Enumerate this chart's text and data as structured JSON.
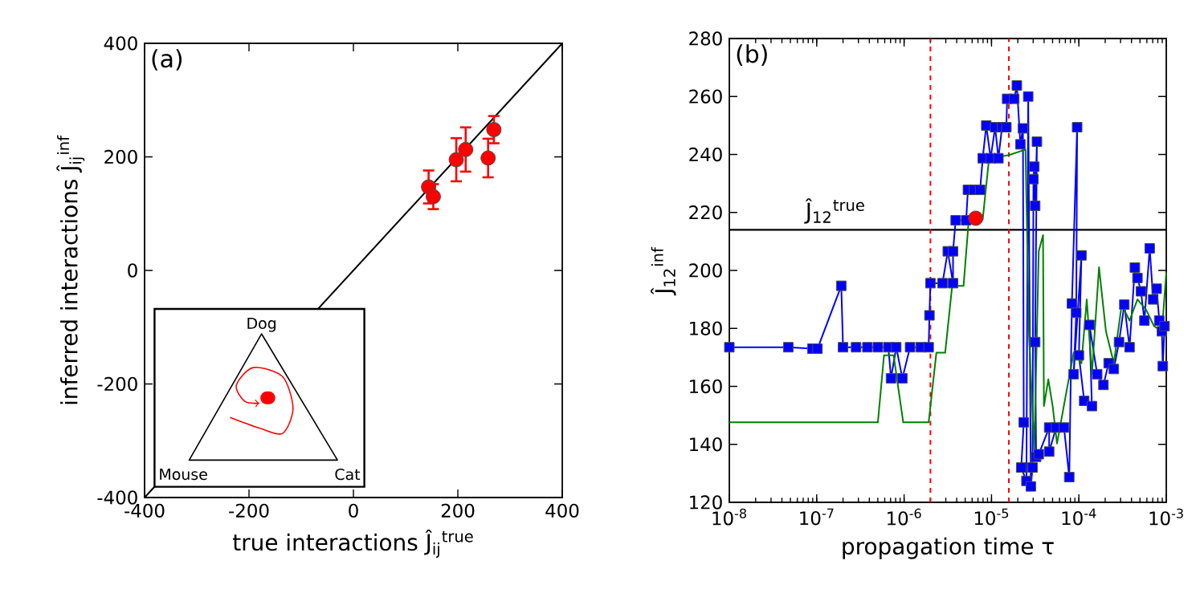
{
  "chart_data": [
    {
      "type": "scatter",
      "xlabel": "true interactions Ĵ$_{ij}$$^{true}$",
      "ylabel": "inferred interactions Ĵ$_{ij}$$^{inf}$",
      "annotations": [
        "(a)",
        "Dog",
        "Mouse",
        "Cat"
      ],
      "xlim": [
        -400,
        400
      ],
      "ylim": [
        -400,
        400
      ],
      "xticks": [
        -400,
        -200,
        0,
        200,
        400
      ],
      "yticks": [
        -400,
        -200,
        0,
        200,
        400
      ],
      "series": [
        {
          "type": "line",
          "color": "#000000",
          "marker": "none",
          "x": [
            -400,
            400
          ],
          "values": [
            -400,
            400
          ]
        },
        {
          "color": "#ff0000",
          "marker": "circle",
          "x": [
            144,
            153,
            197,
            215,
            258,
            269
          ],
          "values": [
            147,
            130,
            195,
            213,
            198,
            248
          ],
          "errors": [
            29,
            22,
            38,
            39,
            34,
            24
          ]
        }
      ]
    },
    {
      "type": "line",
      "xlabel": "propagation time τ",
      "ylabel": "Ĵ$_{12}$$^{inf}$",
      "annotations": [
        "(b)"
      ],
      "log": "x",
      "xlim": [
        1e-08,
        0.001
      ],
      "ylim": [
        120,
        280
      ],
      "xticks": [
        {
          "value": 1e-08,
          "label": "10$^{-8}$"
        },
        {
          "value": 1e-07,
          "label": "10$^{-7}$"
        },
        {
          "value": 1e-06,
          "label": "10$^{-6}$"
        },
        {
          "value": 1e-05,
          "label": "10$^{-5}$"
        },
        {
          "value": 0.0001,
          "label": "10$^{-4}$"
        },
        {
          "value": 0.001,
          "label": "10$^{-3}$"
        }
      ],
      "yticks": [
        120,
        140,
        160,
        180,
        200,
        220,
        240,
        260,
        280
      ],
      "ref_lines": [
        {
          "axis": "y",
          "value": 214,
          "label": "Ĵ$_{12}$$^{true}$",
          "color": "#000000",
          "line_style": "solid"
        },
        {
          "axis": "x",
          "value": 2e-06,
          "color": "#ff0000",
          "line_style": "dashed"
        },
        {
          "axis": "x",
          "value": 1.58e-05,
          "color": "#ff0000",
          "line_style": "dashed"
        }
      ],
      "series": [
        {
          "color": "#0000ff",
          "marker": "square",
          "x": [
            1e-08,
            4.73e-08,
            8.91e-08,
            1.02e-07,
            1.91e-07,
            2e-07,
            2.82e-07,
            3.8e-07,
            5.01e-07,
            6.61e-07,
            7.08e-07,
            8.13e-07,
            9.55e-07,
            1.17e-06,
            1.55e-06,
            1.91e-06,
            1.95e-06,
            2e-06,
            2.75e-06,
            3.16e-06,
            3.63e-06,
            3.63e-06,
            3.89e-06,
            5.13e-06,
            5.37e-06,
            6.31e-06,
            7.41e-06,
            7.94e-06,
            8.71e-06,
            9.77e-06,
            1.1e-05,
            1.2e-05,
            1.32e-05,
            1.48e-05,
            1.51e-05,
            1.82e-05,
            1.95e-05,
            2.14e-05,
            2.29e-05,
            2.34e-05,
            2.19e-05,
            2.51e-05,
            2.63e-05,
            2.82e-05,
            2.95e-05,
            3.02e-05,
            3.09e-05,
            3.16e-05,
            3.31e-05,
            3.16e-05,
            3.24e-05,
            3.47e-05,
            4.57e-05,
            4.57e-05,
            5.5e-05,
            6.76e-05,
            7.76e-05,
            8.32e-05,
            9.55e-05,
            9.33e-05,
            8.71e-05,
            0.000107,
            0.0001,
            0.000115,
            0.000141,
            0.000132,
            0.000162,
            0.000191,
            0.000219,
            0.000251,
            0.000288,
            0.000331,
            0.00038,
            0.000437,
            0.000468,
            0.000513,
            0.000562,
            0.000646,
            0.000708,
            0.000776,
            0.000832,
            0.000891,
            0.000912,
            0.000955
          ],
          "values": [
            173.5,
            173.5,
            173,
            173,
            194.7,
            173.5,
            173.5,
            173.5,
            173.5,
            173.5,
            162.8,
            173.5,
            162.8,
            173.5,
            173.5,
            173.5,
            184.5,
            195.6,
            195.6,
            206.6,
            195.6,
            206.6,
            217.3,
            217.3,
            227.8,
            227.8,
            227.8,
            238.7,
            250,
            238.7,
            249.4,
            238.7,
            249.4,
            249.4,
            259.2,
            259.2,
            263.8,
            243.5,
            249,
            147.6,
            132,
            127.4,
            260,
            125.5,
            132,
            231.5,
            235.8,
            222.3,
            244.4,
            175.3,
            135.7,
            136.6,
            145.8,
            137.5,
            145.8,
            145.8,
            128.7,
            188.6,
            249.4,
            185.4,
            164.2,
            205.2,
            170.7,
            155,
            153.2,
            181.2,
            164.2,
            160.5,
            168,
            166,
            175.3,
            188.2,
            173.5,
            201,
            197.4,
            192.8,
            182.7,
            207.6,
            190,
            193.7,
            182.7,
            179,
            167,
            180.8
          ]
        },
        {
          "color": "#008000",
          "marker": "none",
          "x": [
            1e-08,
            5.01e-07,
            5.89e-07,
            7.59e-07,
            9.77e-07,
            1.91e-06,
            2.34e-06,
            2.95e-06,
            3.55e-06,
            4.79e-06,
            5.5e-06,
            7.94e-06,
            9.33e-06,
            1.12e-05,
            1.58e-05,
            2.45e-05,
            2.69e-05,
            3.09e-05,
            3.47e-05,
            3.89e-05,
            3.98e-05,
            4.47e-05,
            5.01e-05,
            5.62e-05,
            7.08e-05,
            8.71e-05,
            0.000107,
            0.000123,
            0.000141,
            0.00017,
            0.000204,
            0.000251,
            0.000309,
            0.00038,
            0.000468,
            0.000589,
            0.000724,
            0.000891,
            0.001
          ],
          "values": [
            147.6,
            147.6,
            170.7,
            170.7,
            147.6,
            147.6,
            171.6,
            171.6,
            194.7,
            194.7,
            217.7,
            217.7,
            238,
            239,
            239.8,
            241.7,
            177,
            138.4,
            206.6,
            212.2,
            153.2,
            162.4,
            153.2,
            140.3,
            156.9,
            171.6,
            168,
            190,
            164.2,
            201.1,
            179,
            168,
            188.2,
            182.7,
            190,
            186.4,
            180.8,
            179,
            199.3
          ]
        },
        {
          "type": "scatter",
          "color": "#ff0000",
          "marker": "circle",
          "x": [
            6.6e-06
          ],
          "values": [
            218
          ]
        }
      ]
    }
  ]
}
